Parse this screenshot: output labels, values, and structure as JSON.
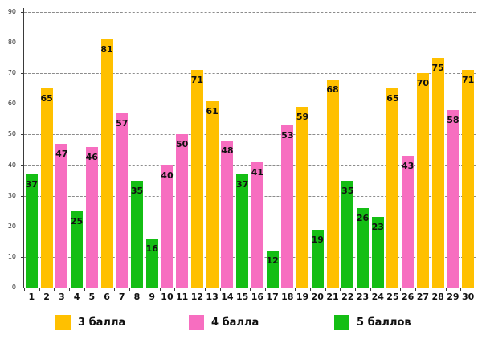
{
  "chart_data": {
    "type": "bar",
    "title": "",
    "xlabel": "",
    "ylabel": "",
    "ylim": [
      0,
      90
    ],
    "yticks": [
      0,
      10,
      20,
      30,
      40,
      50,
      60,
      70,
      80,
      90
    ],
    "grid": "dashed-horizontal",
    "legend_position": "bottom",
    "categories": [
      "1",
      "2",
      "3",
      "4",
      "5",
      "6",
      "7",
      "8",
      "9",
      "10",
      "11",
      "12",
      "13",
      "14",
      "15",
      "16",
      "17",
      "18",
      "19",
      "20",
      "21",
      "22",
      "23",
      "24",
      "25",
      "26",
      "27",
      "28",
      "29",
      "30"
    ],
    "series": [
      {
        "name": "3 балла",
        "color": "#FFC000"
      },
      {
        "name": "4 балла",
        "color": "#F76EC0"
      },
      {
        "name": "5 баллов",
        "color": "#14BE14"
      }
    ],
    "bars": [
      {
        "x": "1",
        "value": 37,
        "series": 2
      },
      {
        "x": "2",
        "value": 65,
        "series": 0
      },
      {
        "x": "3",
        "value": 47,
        "series": 1
      },
      {
        "x": "4",
        "value": 25,
        "series": 2
      },
      {
        "x": "5",
        "value": 46,
        "series": 1
      },
      {
        "x": "6",
        "value": 81,
        "series": 0
      },
      {
        "x": "7",
        "value": 57,
        "series": 1
      },
      {
        "x": "8",
        "value": 35,
        "series": 2
      },
      {
        "x": "9",
        "value": 16,
        "series": 2
      },
      {
        "x": "10",
        "value": 40,
        "series": 1
      },
      {
        "x": "11",
        "value": 50,
        "series": 1
      },
      {
        "x": "12",
        "value": 71,
        "series": 0
      },
      {
        "x": "13",
        "value": 61,
        "series": 0
      },
      {
        "x": "14",
        "value": 48,
        "series": 1
      },
      {
        "x": "15",
        "value": 37,
        "series": 2
      },
      {
        "x": "16",
        "value": 41,
        "series": 1
      },
      {
        "x": "17",
        "value": 12,
        "series": 2
      },
      {
        "x": "18",
        "value": 53,
        "series": 1
      },
      {
        "x": "19",
        "value": 59,
        "series": 0
      },
      {
        "x": "20",
        "value": 19,
        "series": 2
      },
      {
        "x": "21",
        "value": 68,
        "series": 0
      },
      {
        "x": "22",
        "value": 35,
        "series": 2
      },
      {
        "x": "23",
        "value": 26,
        "series": 2
      },
      {
        "x": "24",
        "value": 23,
        "series": 2
      },
      {
        "x": "25",
        "value": 65,
        "series": 0
      },
      {
        "x": "26",
        "value": 43,
        "series": 1
      },
      {
        "x": "27",
        "value": 70,
        "series": 0
      },
      {
        "x": "28",
        "value": 75,
        "series": 0
      },
      {
        "x": "29",
        "value": 58,
        "series": 1
      },
      {
        "x": "30",
        "value": 71,
        "series": 0
      }
    ],
    "legend_items": [
      {
        "label": "3 балла"
      },
      {
        "label": "4 балла"
      },
      {
        "label": "5 баллов"
      }
    ]
  },
  "layout_colors": {
    "grid": "#8c8c8c",
    "axis": "#3a3a3a",
    "label_text": "#111111",
    "background": "#ffffff"
  }
}
